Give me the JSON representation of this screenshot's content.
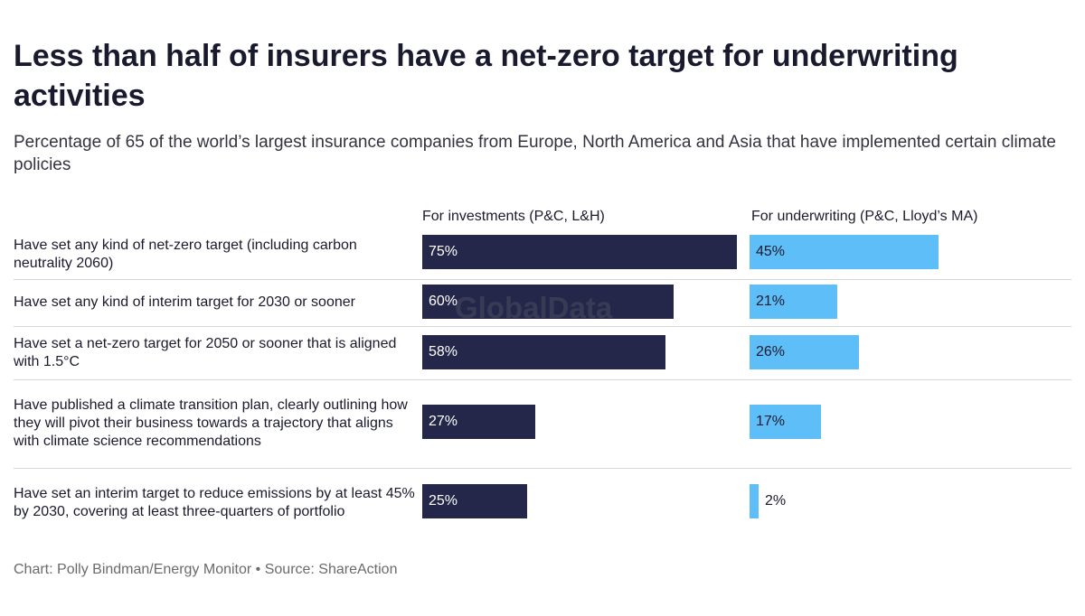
{
  "title": "Less than half of insurers have a net-zero target for underwriting activities",
  "subtitle": "Percentage of 65 of the world’s largest insurance companies from Europe, North America and Asia that have implemented certain climate policies",
  "watermark": "GlobalData",
  "footer": "Chart: Polly Bindman/Energy Monitor • Source: ShareAction",
  "colors": {
    "investments": "#24274a",
    "underwriting": "#5ebef7"
  },
  "chart_data": {
    "type": "bar",
    "orientation": "horizontal",
    "grid": false,
    "categories": [
      "Have set any kind of net-zero target (including carbon neutrality 2060)",
      "Have set any kind of interim target for 2030 or sooner",
      "Have set a net-zero target for 2050 or sooner that is aligned with 1.5°C",
      "Have published a climate transition plan, clearly outlining how they will pivot their business towards a trajectory that aligns with climate science recommendations",
      "Have set an interim target to reduce emissions by at least 45% by 2030, covering at least three-quarters of portfolio"
    ],
    "series": [
      {
        "name": "For investments (P&C, L&H)",
        "values": [
          75,
          60,
          58,
          27,
          25
        ],
        "labels": [
          "75%",
          "60%",
          "58%",
          "27%",
          "25%"
        ]
      },
      {
        "name": "For underwriting (P&C, Lloyd’s MA)",
        "values": [
          45,
          21,
          26,
          17,
          2
        ],
        "labels": [
          "45%",
          "21%",
          "26%",
          "17%",
          "2%"
        ]
      }
    ],
    "xlim": [
      0,
      75
    ]
  }
}
